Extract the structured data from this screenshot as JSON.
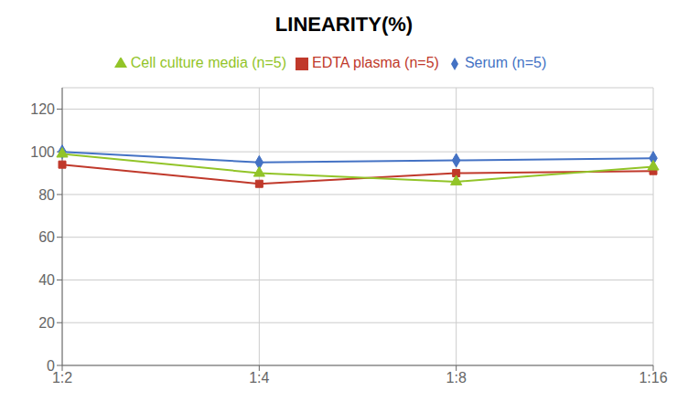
{
  "chart_data": {
    "type": "line",
    "title": "LINEARITY(%)",
    "categories": [
      "1:2",
      "1:4",
      "1:8",
      "1:16"
    ],
    "series": [
      {
        "name": "Serum (n=5)",
        "color": "#4472C4",
        "marker": "diamond",
        "values": [
          100,
          95,
          96,
          97
        ]
      },
      {
        "name": "EDTA plasma (n=5)",
        "color": "#C0392B",
        "marker": "square",
        "values": [
          94,
          85,
          90,
          91
        ]
      },
      {
        "name": "Cell culture media (n=5)",
        "color": "#92C428",
        "marker": "triangle",
        "values": [
          99,
          90,
          86,
          93
        ]
      }
    ],
    "ylim": [
      0,
      130
    ],
    "yticks": [
      0,
      20,
      40,
      60,
      80,
      100,
      120
    ],
    "grid": true,
    "legend": "top"
  }
}
